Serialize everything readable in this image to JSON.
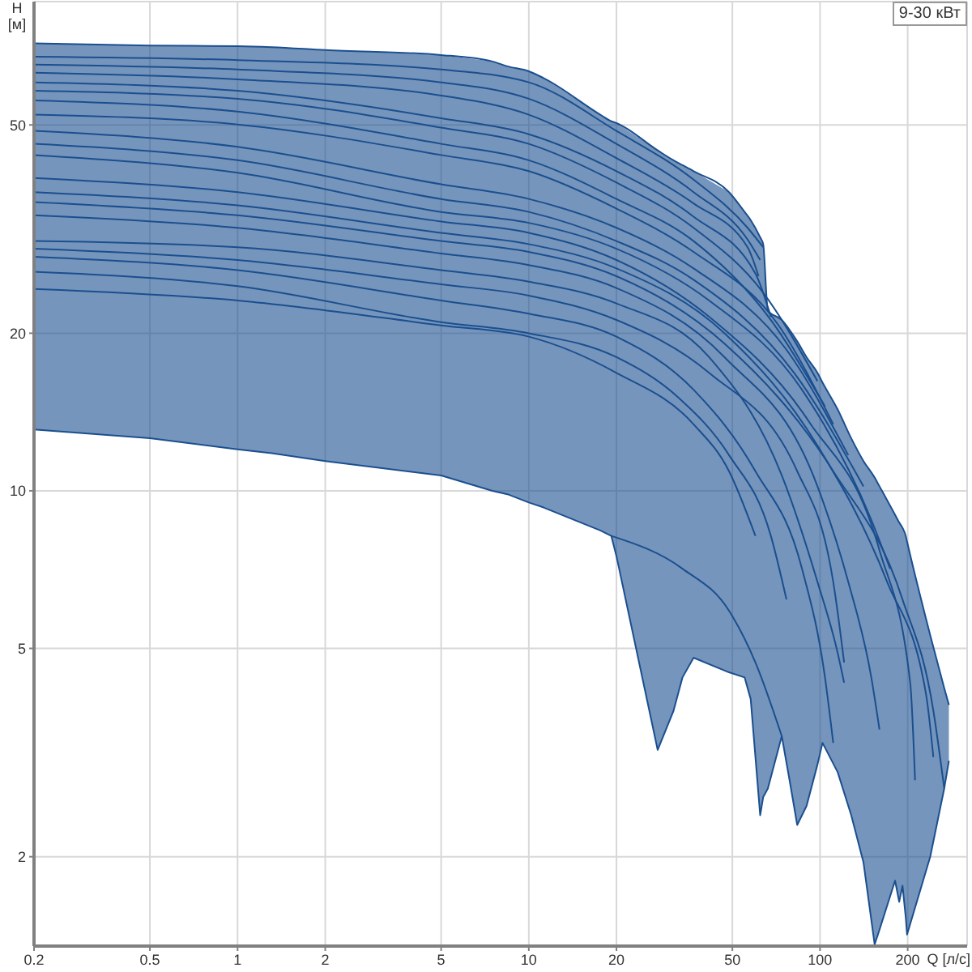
{
  "chart_data": {
    "type": "line",
    "xlabel": "Q [л/с]",
    "ylabel": "H [м]",
    "annotations": [
      "9-30 кВт"
    ],
    "log": "xy",
    "grid": true,
    "xlim": [
      0.2,
      320
    ],
    "xticks": [
      0.2,
      0.5,
      1,
      2,
      5,
      10,
      20,
      50,
      100,
      200
    ],
    "ylim": [
      1.35,
      86
    ],
    "yticks": [
      2,
      5,
      10,
      20,
      50
    ],
    "series": [
      {
        "color": "#1a4f8f",
        "x": [
          0.2,
          0.5,
          1,
          1.31,
          2,
          5,
          7.5,
          8.45,
          10,
          11.2,
          17.6,
          19.2,
          20,
          27.7,
          31.4,
          33.7,
          36.8,
          48.7,
          55.1,
          57.8,
          62.3,
          63.8,
          66.2,
          73.9,
          78.6,
          83.5,
          89.9,
          98,
          102,
          115,
          128,
          141,
          154,
          160,
          181,
          187,
          192,
          197,
          199,
          239,
          267,
          277
        ],
        "values": [
          71.6,
          70.9,
          70.7,
          70.4,
          69.5,
          68,
          66.1,
          64.7,
          63.3,
          61.5,
          52.3,
          50.8,
          50.4,
          44.7,
          42.8,
          41.9,
          40.8,
          37.2,
          34.1,
          32.9,
          30.5,
          29.6,
          22.1,
          21.2,
          20.3,
          19.3,
          18,
          16.8,
          16.1,
          14.3,
          12.6,
          11.4,
          10.6,
          10.2,
          9,
          8.7,
          8.5,
          8.2,
          8,
          5.3,
          4.2,
          3.9
        ],
        "upper": [
          71.6,
          70.9,
          70.7,
          70.4,
          69.5,
          68,
          66.1,
          64.7,
          63.3,
          61.5,
          52.3,
          50.8,
          50.4,
          44.7,
          42.8,
          41.9,
          40.8,
          37.2,
          34.1,
          32.9,
          30.5,
          29.6,
          22.1,
          21.2,
          20.3,
          19.3,
          18,
          16.8,
          16.1,
          14.3,
          12.6,
          11.4,
          10.6,
          10.2,
          9,
          8.7,
          8.5,
          8.2,
          8,
          5.3,
          4.2,
          3.9
        ],
        "lower": [
          13.1,
          12.6,
          12,
          11.8,
          11.4,
          10.7,
          10,
          9.85,
          9.5,
          9.3,
          8.4,
          8.2,
          7.5,
          3.2,
          3.8,
          4.4,
          4.8,
          4.5,
          4.4,
          4,
          2.4,
          2.6,
          2.7,
          3.4,
          2.8,
          2.3,
          2.5,
          3,
          3.3,
          2.9,
          2.4,
          1.95,
          1.36,
          1.45,
          1.8,
          1.64,
          1.76,
          1.53,
          1.42,
          2,
          2.7,
          3.05
        ]
      },
      {
        "color": "#1a4f8f",
        "x": [
          0.2,
          0.5,
          1,
          1.31,
          2,
          5,
          7.5,
          8.45,
          10,
          11.2,
          17.6,
          19.2,
          20,
          27.7,
          31.4,
          33.7,
          36.8,
          48.7,
          55.1,
          57.8,
          62.3,
          63.8,
          66.2,
          73.9,
          78.6,
          83.5,
          89.9,
          98,
          102,
          115,
          128,
          141,
          154,
          160,
          181,
          187,
          192,
          197,
          199,
          239,
          267,
          277
        ],
        "values": [
          13.1,
          12.6,
          12,
          11.8,
          11.4,
          10.7,
          10,
          9.85,
          9.5,
          9.3,
          8.4,
          8.2,
          7.5,
          3.2,
          3.8,
          4.4,
          4.8,
          4.5,
          4.4,
          4,
          2.4,
          2.6,
          2.7,
          3.4,
          2.8,
          2.3,
          2.5,
          3,
          3.3,
          2.9,
          2.4,
          1.95,
          1.36,
          1.45,
          1.8,
          1.64,
          1.76,
          1.53,
          1.42,
          2,
          2.7,
          3.05
        ]
      },
      {
        "color": "#1a4f8f",
        "x": [
          0.2,
          1,
          5,
          10,
          20,
          36.8,
          56.4,
          63.8
        ],
        "values": [
          67.5,
          66.5,
          63.8,
          60.3,
          48.7,
          39.3,
          31.8,
          29.2
        ]
      },
      {
        "color": "#1a4f8f",
        "x": [
          0.2,
          1,
          5,
          10,
          20,
          36.8,
          56.4,
          62.3
        ],
        "values": [
          65.2,
          63.8,
          60.3,
          56.1,
          46,
          37.2,
          30.2,
          27.6
        ]
      },
      {
        "color": "#1a4f8f",
        "x": [
          0.2,
          1,
          5,
          10,
          20,
          36.8,
          56.4,
          61.5
        ],
        "values": [
          62.9,
          61.1,
          56.9,
          52.3,
          43.2,
          35.4,
          29.2,
          25.7
        ]
      },
      {
        "color": "#1a4f8f",
        "x": [
          0.2,
          1,
          5,
          10,
          20,
          36.8,
          60,
          67.8
        ],
        "values": [
          60.3,
          58.1,
          51.5,
          48,
          40.8,
          33.4,
          26,
          21.5
        ]
      },
      {
        "color": "#1a4f8f",
        "x": [
          0.2,
          1,
          5,
          10,
          20,
          36.8,
          63.8,
          98
        ],
        "values": [
          58.1,
          56.1,
          49.4,
          46,
          38.8,
          31.8,
          23.9,
          16.2
        ]
      },
      {
        "color": "#1a4f8f",
        "x": [
          0.2,
          1,
          5,
          10,
          20,
          36.8,
          67.8,
          104
        ],
        "values": [
          55.7,
          53,
          46,
          42.8,
          36.1,
          30,
          21.2,
          14.5
        ]
      },
      {
        "color": "#1a4f8f",
        "x": [
          0.2,
          1,
          5,
          10,
          20,
          36.8,
          72.1,
          111
        ],
        "values": [
          52.3,
          50.1,
          43.8,
          40.8,
          34.6,
          28.6,
          20.7,
          13.4
        ]
      },
      {
        "color": "#1a4f8f",
        "x": [
          0.2,
          1,
          5,
          10,
          20,
          36.8,
          76.7,
          125
        ],
        "values": [
          48.7,
          45.4,
          38.5,
          36.1,
          31.8,
          26.6,
          18.6,
          11.7
        ]
      },
      {
        "color": "#1a4f8f",
        "x": [
          0.2,
          1,
          5,
          10,
          20,
          36.8,
          81.5,
          141
        ],
        "values": [
          46,
          42.8,
          36.1,
          34.1,
          30,
          25.3,
          16.8,
          10.2
        ]
      },
      {
        "color": "#1a4f8f",
        "x": [
          0.2,
          1,
          5,
          10,
          20,
          41.6,
          86.7,
          150,
          174
        ],
        "values": [
          43.8,
          40.5,
          34.1,
          32.5,
          29,
          23.1,
          15.6,
          8.8,
          7.1
        ]
      },
      {
        "color": "#1a4f8f",
        "x": [
          0.2,
          1,
          5,
          10,
          20,
          41.6,
          92.1,
          160,
          204,
          212
        ],
        "values": [
          39.6,
          37.2,
          32.7,
          31.1,
          27.6,
          21.5,
          13.5,
          7.7,
          4.3,
          2.8
        ]
      },
      {
        "color": "#1a4f8f",
        "x": [
          0.2,
          1,
          5,
          10,
          20,
          47,
          98,
          170,
          231,
          245
        ],
        "values": [
          37.2,
          35.1,
          31.1,
          29.6,
          26.6,
          20,
          12.2,
          6.7,
          4.1,
          3.1
        ]
      },
      {
        "color": "#1a4f8f",
        "x": [
          0.2,
          1,
          5,
          10,
          20,
          47,
          111,
          192,
          245,
          267
        ],
        "values": [
          35.6,
          33.6,
          30,
          28.6,
          25.7,
          19.1,
          10.9,
          6.2,
          3.8,
          2.7
        ]
      },
      {
        "color": "#1a4f8f",
        "x": [
          0.2,
          1,
          5,
          10,
          20,
          47,
          98,
          125,
          150,
          160
        ],
        "values": [
          33.6,
          31.8,
          28.4,
          27,
          24.4,
          18,
          10.2,
          6.7,
          4.4,
          3.5
        ]
      },
      {
        "color": "#1a4f8f",
        "x": [
          0.2,
          1,
          5,
          10,
          20,
          41.6,
          73.9,
          98,
          115,
          121
        ],
        "values": [
          30,
          29.2,
          26.4,
          25.1,
          22.8,
          18,
          10.7,
          6.7,
          4.9,
          4.3
        ]
      },
      {
        "color": "#1a4f8f",
        "x": [
          0.2,
          1,
          5,
          10,
          20,
          41.6,
          83.5,
          111,
          121
        ],
        "values": [
          29,
          27.6,
          24.8,
          23.6,
          21.2,
          16.8,
          10.9,
          6.7,
          4.7
        ]
      },
      {
        "color": "#1a4f8f",
        "x": [
          0.2,
          1,
          5,
          10,
          20,
          36.8,
          60,
          86.7,
          104,
          111
        ],
        "values": [
          28,
          26.4,
          23.1,
          21.8,
          19.7,
          15.6,
          10.9,
          7.1,
          4.4,
          3.3
        ]
      },
      {
        "color": "#1a4f8f",
        "x": [
          0.2,
          1,
          5,
          10,
          20,
          32.5,
          48.7,
          67.8,
          76.7
        ],
        "values": [
          26.2,
          24.6,
          21,
          20,
          18,
          15.1,
          11.7,
          8.2,
          6.2
        ]
      },
      {
        "color": "#1a4f8f",
        "x": [
          0.2,
          1,
          5,
          10,
          20,
          36.8,
          48.7,
          60
        ],
        "values": [
          24.3,
          23.1,
          20.7,
          19.7,
          16.8,
          13.4,
          10.9,
          8.2
        ]
      },
      {
        "color": "#1a4f8f",
        "x": [
          19.2,
          33.7,
          48.7,
          60,
          73.9
        ],
        "values": [
          8.2,
          7.1,
          5.9,
          4.7,
          3.4
        ]
      }
    ]
  }
}
